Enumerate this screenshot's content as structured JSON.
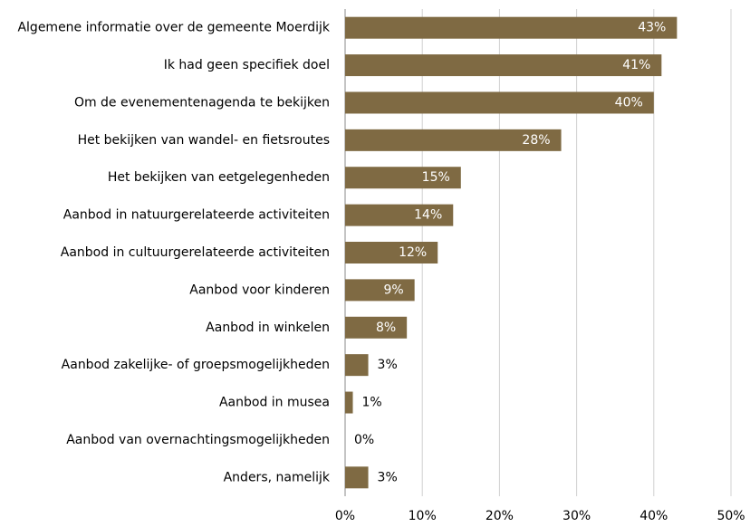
{
  "chart_data": {
    "type": "barh",
    "categories": [
      "Algemene informatie over de gemeente Moerdijk",
      "Ik had geen specifiek doel",
      "Om de evenementenagenda te bekijken",
      "Het bekijken van wandel- en fietsroutes",
      "Het bekijken van eetgelegenheden",
      "Aanbod in natuurgerelateerde activiteiten",
      "Aanbod in cultuurgerelateerde activiteiten",
      "Aanbod voor kinderen",
      "Aanbod in winkelen",
      "Aanbod zakelijke- of groepsmogelijkheden",
      "Aanbod in musea",
      "Aanbod van overnachtingsmogelijkheden",
      "Anders, namelijk"
    ],
    "values": [
      43,
      41,
      40,
      28,
      15,
      14,
      12,
      9,
      8,
      3,
      1,
      0,
      3
    ],
    "value_labels": [
      "43%",
      "41%",
      "40%",
      "28%",
      "15%",
      "14%",
      "12%",
      "9%",
      "8%",
      "3%",
      "1%",
      "0%",
      "3%"
    ],
    "color": "#7f6a43",
    "xlim": [
      0,
      50
    ],
    "xticks": [
      {
        "value": 0,
        "label": "0%"
      },
      {
        "value": 10,
        "label": "10%"
      },
      {
        "value": 20,
        "label": "20%"
      },
      {
        "value": 30,
        "label": "30%"
      },
      {
        "value": 40,
        "label": "40%"
      },
      {
        "value": 50,
        "label": "50%"
      }
    ],
    "grid": true
  }
}
